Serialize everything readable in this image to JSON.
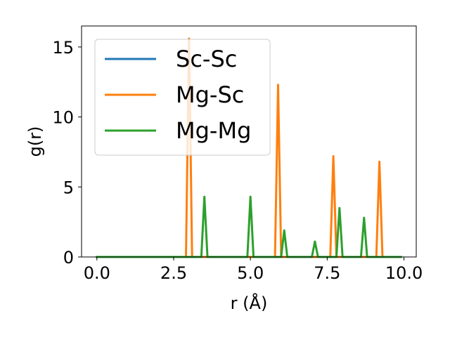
{
  "chart_data": {
    "type": "line",
    "title": "",
    "xlabel": "r (Å)",
    "ylabel": "g(r)",
    "xlim": [
      -0.5,
      10.4
    ],
    "ylim": [
      0,
      16.5
    ],
    "xticks": [
      0.0,
      2.5,
      5.0,
      7.5,
      10.0
    ],
    "xtick_labels": [
      "0.0",
      "2.5",
      "5.0",
      "7.5",
      "10.0"
    ],
    "yticks": [
      0,
      5,
      10,
      15
    ],
    "ytick_labels": [
      "0",
      "5",
      "10",
      "15"
    ],
    "grid": false,
    "legend_position": "top-left",
    "series": [
      {
        "name": "Sc-Sc",
        "color": "#1f77b4",
        "x": [
          0,
          9.9
        ],
        "y": [
          0,
          0
        ]
      },
      {
        "name": "Mg-Sc",
        "color": "#ff7f0e",
        "x": [
          0,
          2.9,
          3.0,
          3.1,
          5.8,
          5.9,
          6.0,
          7.6,
          7.7,
          7.8,
          9.1,
          9.2,
          9.3,
          9.9
        ],
        "y": [
          0,
          0,
          15.6,
          0,
          0,
          12.3,
          0,
          0,
          7.2,
          0,
          0,
          6.8,
          0,
          0
        ]
      },
      {
        "name": "Mg-Mg",
        "color": "#2ca02c",
        "x": [
          0,
          3.4,
          3.5,
          3.6,
          4.9,
          5.0,
          5.1,
          6.0,
          6.1,
          6.2,
          7.0,
          7.1,
          7.2,
          7.8,
          7.9,
          8.0,
          8.6,
          8.7,
          8.8,
          9.9
        ],
        "y": [
          0,
          0,
          4.3,
          0,
          0,
          4.3,
          0,
          0,
          1.9,
          0,
          0,
          1.1,
          0,
          0,
          3.5,
          0,
          0,
          2.8,
          0,
          0
        ]
      }
    ]
  }
}
